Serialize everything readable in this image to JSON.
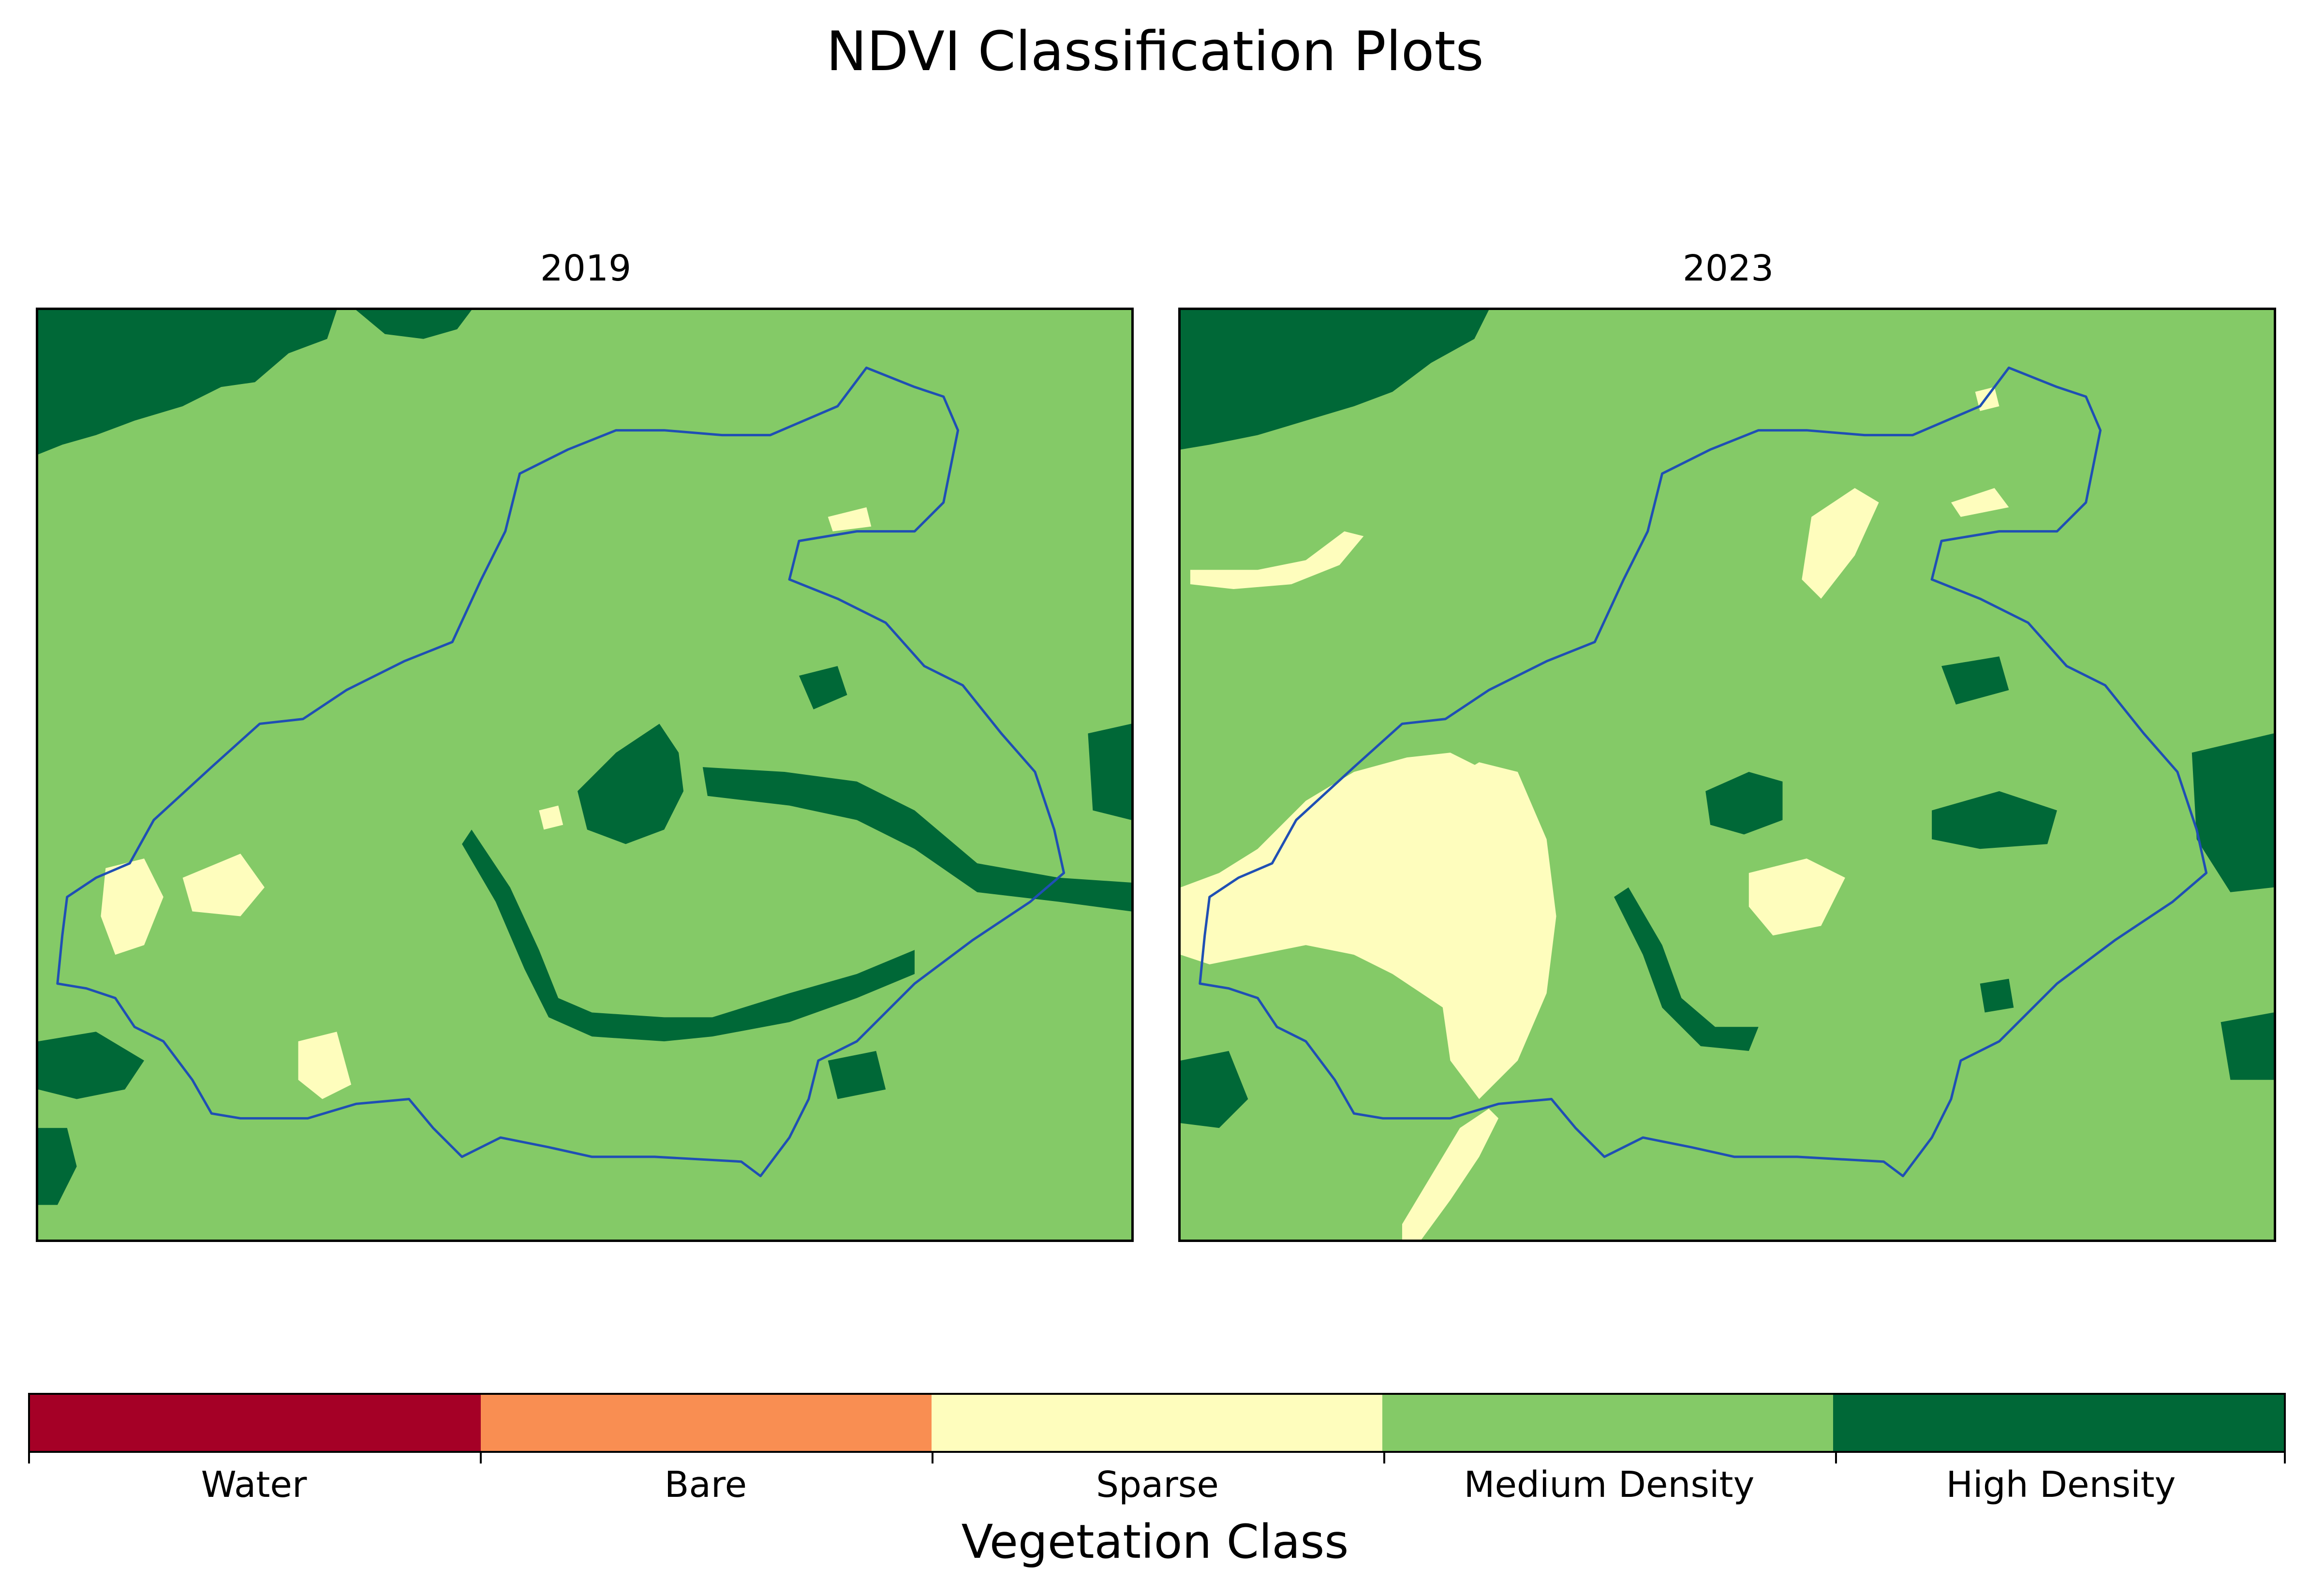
{
  "figure": {
    "title": "NDVI Classification Plots"
  },
  "panels": [
    {
      "title": "2019"
    },
    {
      "title": "2023"
    }
  ],
  "legend": {
    "label": "Vegetation Class",
    "classes": [
      {
        "name": "Water",
        "color": "#a50026"
      },
      {
        "name": "Bare",
        "color": "#f98e52"
      },
      {
        "name": "Sparse",
        "color": "#fefdbd"
      },
      {
        "name": "Medium Density",
        "color": "#84ca67"
      },
      {
        "name": "High Density",
        "color": "#006837"
      }
    ]
  },
  "colors": {
    "boundary": "#1f4fb4"
  }
}
